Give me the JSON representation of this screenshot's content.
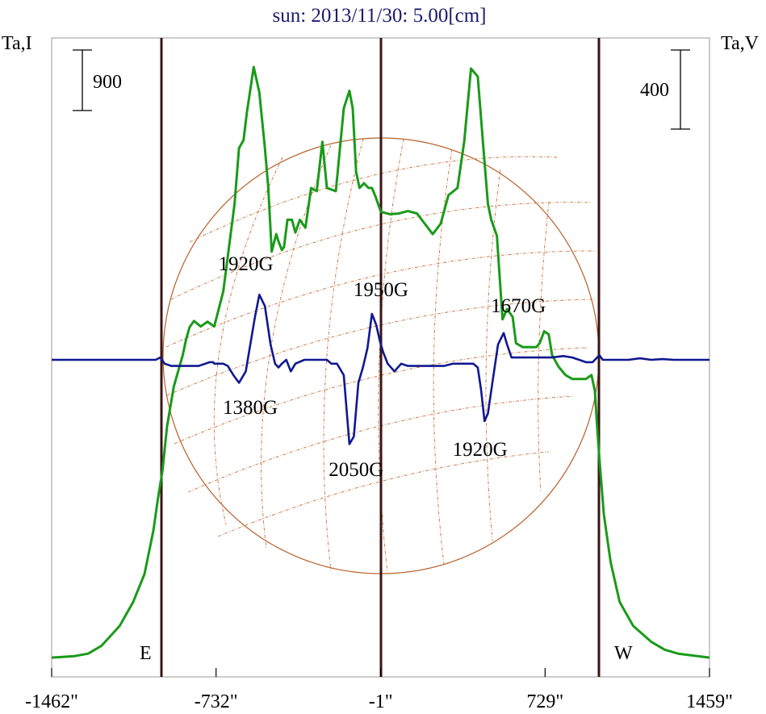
{
  "chart_data": {
    "type": "line",
    "title": "sun: 2013/11/30: 5.00[cm]",
    "left_axis_label": "Ta,I",
    "right_axis_label": "Ta,V",
    "x_ticks": [
      {
        "value": -1462,
        "label": "-1462\""
      },
      {
        "value": -732,
        "label": "-732\""
      },
      {
        "value": -1,
        "label": "-1\""
      },
      {
        "value": 729,
        "label": "729\""
      },
      {
        "value": 1459,
        "label": "1459\""
      }
    ],
    "xlim": [
      -1462,
      1459
    ],
    "disk_limbs": {
      "east": -970,
      "west": 970
    },
    "limb_labels": {
      "east": "E",
      "west": "W"
    },
    "scale_bars": {
      "left": "900",
      "right": "400"
    },
    "grid": false,
    "colors": {
      "intensity": "#1a9a1a",
      "polarization": "#101890",
      "disk": "#b8602a",
      "limbs": "#3a1414",
      "title": "#1a1a6e"
    },
    "series": [
      {
        "type": "intensity",
        "color": "#1a9a1a",
        "stroke": 3,
        "x": [
          -1462,
          -1360,
          -1300,
          -1240,
          -1160,
          -1100,
          -1050,
          -1010,
          -990,
          -970,
          -950,
          -920,
          -900,
          -880,
          -865,
          -850,
          -830,
          -800,
          -770,
          -740,
          -700,
          -650,
          -630,
          -610,
          -595,
          -565,
          -540,
          -515,
          -500,
          -485,
          -465,
          -455,
          -440,
          -430,
          -415,
          -395,
          -380,
          -360,
          -335,
          -310,
          -285,
          -260,
          -240,
          -200,
          -165,
          -140,
          -125,
          -110,
          -95,
          -75,
          -55,
          -40,
          -25,
          0,
          40,
          80,
          120,
          160,
          195,
          230,
          265,
          300,
          340,
          370,
          400,
          430,
          455,
          475,
          490,
          515,
          540,
          560,
          585,
          600,
          630,
          660,
          690,
          705,
          725,
          745,
          760,
          790,
          820,
          850,
          880,
          910,
          935,
          950,
          960,
          970,
          990,
          1020,
          1060,
          1120,
          1200,
          1260,
          1320,
          1459
        ],
        "y": [
          10,
          12,
          15,
          25,
          50,
          80,
          115,
          170,
          210,
          245,
          300,
          350,
          370,
          390,
          410,
          425,
          433,
          426,
          432,
          426,
          470,
          580,
          650,
          660,
          695,
          752,
          720,
          650,
          600,
          520,
          542,
          533,
          522,
          526,
          560,
          560,
          544,
          560,
          550,
          600,
          596,
          658,
          600,
          596,
          700,
          722,
          700,
          620,
          600,
          606,
          600,
          600,
          590,
          570,
          567,
          568,
          571,
          568,
          555,
          542,
          555,
          591,
          600,
          659,
          750,
          740,
          650,
          580,
          560,
          540,
          435,
          448,
          438,
          405,
          400,
          400,
          400,
          405,
          420,
          416,
          390,
          375,
          365,
          360,
          360,
          360,
          365,
          345,
          300,
          260,
          190,
          130,
          80,
          50,
          30,
          20,
          15,
          10
        ]
      },
      {
        "type": "polarization",
        "color": "#101890",
        "stroke": 2.6,
        "x": [
          -1462,
          -1000,
          -980,
          -960,
          -930,
          -880,
          -840,
          -810,
          -780,
          -760,
          -745,
          -740,
          -730,
          -700,
          -680,
          -655,
          -630,
          -600,
          -580,
          -560,
          -540,
          -515,
          -490,
          -470,
          -455,
          -440,
          -420,
          -400,
          -380,
          -340,
          -300,
          -260,
          -240,
          -220,
          -195,
          -165,
          -140,
          -120,
          -100,
          -80,
          -60,
          -40,
          -20,
          -5,
          10,
          30,
          60,
          90,
          120,
          160,
          190,
          230,
          280,
          320,
          360,
          390,
          410,
          430,
          445,
          460,
          475,
          495,
          520,
          545,
          560,
          580,
          620,
          680,
          720,
          760,
          810,
          850,
          880,
          910,
          940,
          960,
          970,
          985,
          1000,
          1040,
          1100,
          1150,
          1200,
          1250,
          1300,
          1459
        ],
        "y": [
          0,
          0,
          3,
          -5,
          -8,
          -8,
          -8,
          -8,
          -5,
          -3,
          -3,
          -5,
          -5,
          -5,
          -8,
          -20,
          -30,
          -15,
          20,
          55,
          85,
          70,
          20,
          -5,
          -10,
          -5,
          0,
          -15,
          -5,
          0,
          0,
          0,
          0,
          -5,
          -5,
          -20,
          -110,
          -100,
          -30,
          -10,
          15,
          60,
          45,
          25,
          10,
          -5,
          -15,
          -5,
          -8,
          -8,
          -8,
          -8,
          -8,
          -5,
          -5,
          -5,
          -5,
          -10,
          -40,
          -80,
          -70,
          -30,
          20,
          35,
          20,
          3,
          3,
          3,
          3,
          3,
          5,
          3,
          0,
          -3,
          -3,
          3,
          6,
          0,
          0,
          0,
          0,
          2,
          0,
          1,
          0,
          0
        ]
      }
    ],
    "annotations": {
      "intensity_peaks": [
        {
          "text": "1920G",
          "x": -600
        },
        {
          "text": "1950G",
          "x": 0
        },
        {
          "text": "1670G",
          "x": 610
        }
      ],
      "polarization_peaks": [
        {
          "text": "1380G",
          "x": -580
        },
        {
          "text": "2050G",
          "x": -110
        },
        {
          "text": "1920G",
          "x": 440
        }
      ]
    }
  }
}
